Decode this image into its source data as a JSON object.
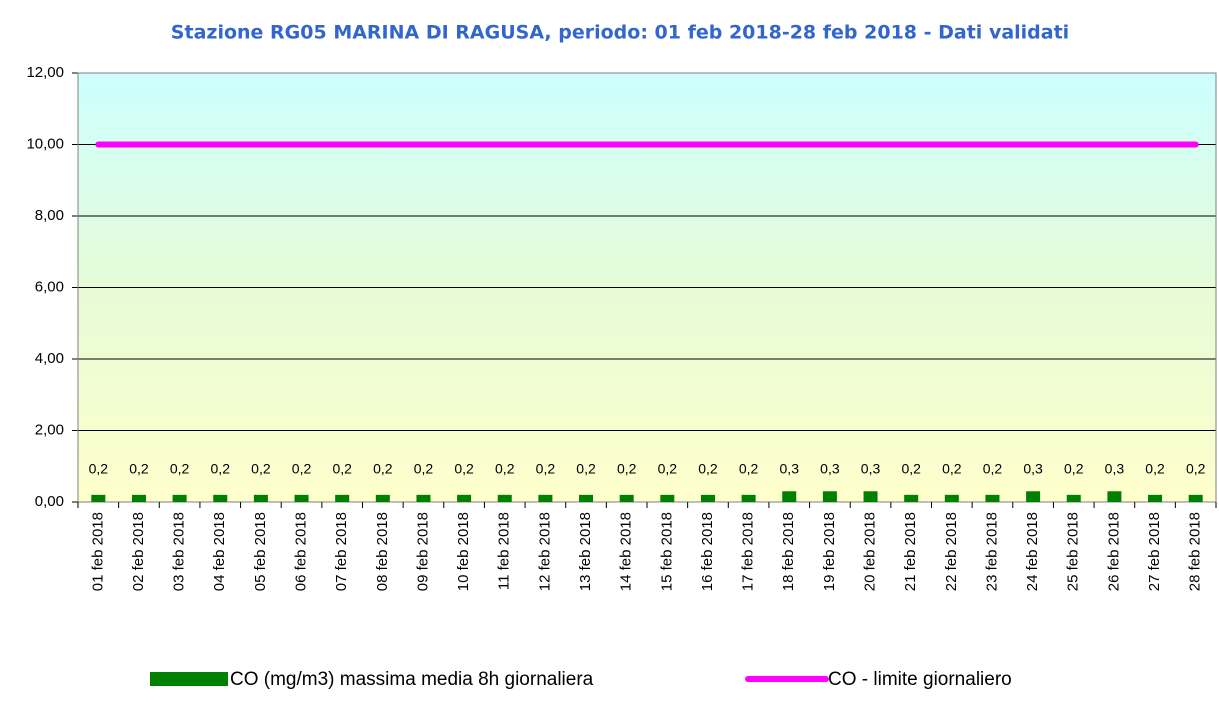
{
  "chart_data": {
    "type": "bar",
    "title": "Stazione RG05 MARINA DI RAGUSA, periodo: 01 feb 2018-28 feb 2018 - Dati validati",
    "categories": [
      "01 feb 2018",
      "02 feb 2018",
      "03 feb 2018",
      "04 feb 2018",
      "05 feb 2018",
      "06 feb 2018",
      "07 feb 2018",
      "08 feb 2018",
      "09 feb 2018",
      "10 feb 2018",
      "11 feb 2018",
      "12 feb 2018",
      "13 feb 2018",
      "14 feb 2018",
      "15 feb 2018",
      "16 feb 2018",
      "17 feb 2018",
      "18 feb 2018",
      "19 feb 2018",
      "20 feb 2018",
      "21 feb 2018",
      "22 feb 2018",
      "23 feb 2018",
      "24 feb 2018",
      "25 feb 2018",
      "26 feb 2018",
      "27 feb 2018",
      "28 feb 2018"
    ],
    "series": [
      {
        "name": "CO (mg/m3) massima media 8h giornaliera",
        "type": "bar",
        "color": "#008000",
        "values": [
          0.2,
          0.2,
          0.2,
          0.2,
          0.2,
          0.2,
          0.2,
          0.2,
          0.2,
          0.2,
          0.2,
          0.2,
          0.2,
          0.2,
          0.2,
          0.2,
          0.2,
          0.3,
          0.3,
          0.3,
          0.2,
          0.2,
          0.2,
          0.3,
          0.2,
          0.3,
          0.2,
          0.2
        ],
        "value_labels": [
          "0,2",
          "0,2",
          "0,2",
          "0,2",
          "0,2",
          "0,2",
          "0,2",
          "0,2",
          "0,2",
          "0,2",
          "0,2",
          "0,2",
          "0,2",
          "0,2",
          "0,2",
          "0,2",
          "0,2",
          "0,3",
          "0,3",
          "0,3",
          "0,2",
          "0,2",
          "0,2",
          "0,3",
          "0,2",
          "0,3",
          "0,2",
          "0,2"
        ]
      },
      {
        "name": "CO - limite giornaliero",
        "type": "line",
        "color": "#ff00ff",
        "values": [
          10,
          10,
          10,
          10,
          10,
          10,
          10,
          10,
          10,
          10,
          10,
          10,
          10,
          10,
          10,
          10,
          10,
          10,
          10,
          10,
          10,
          10,
          10,
          10,
          10,
          10,
          10,
          10
        ]
      }
    ],
    "ylim": [
      0,
      12
    ],
    "yticks": [
      {
        "value": 0,
        "label": "0,00"
      },
      {
        "value": 2,
        "label": "2,00"
      },
      {
        "value": 4,
        "label": "4,00"
      },
      {
        "value": 6,
        "label": "6,00"
      },
      {
        "value": 8,
        "label": "8,00"
      },
      {
        "value": 10,
        "label": "10,00"
      },
      {
        "value": 12,
        "label": "12,00"
      }
    ],
    "grid": true
  }
}
